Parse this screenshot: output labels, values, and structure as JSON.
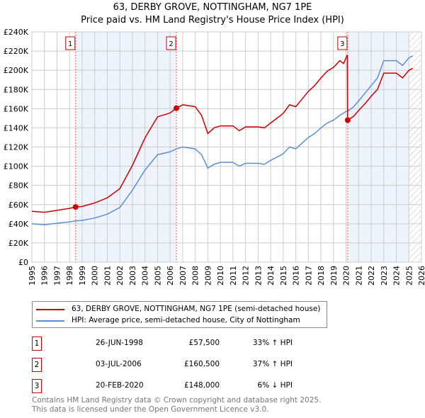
{
  "chart_data": {
    "type": "line",
    "title": "63, DERBY GROVE, NOTTINGHAM, NG7 1PE",
    "subtitle": "Price paid vs. HM Land Registry's House Price Index (HPI)",
    "xlim": [
      1995,
      2026
    ],
    "ylim": [
      0,
      240000
    ],
    "yticks": [
      0,
      20000,
      40000,
      60000,
      80000,
      100000,
      120000,
      140000,
      160000,
      180000,
      200000,
      220000,
      240000
    ],
    "ytick_labels": [
      "£0",
      "£20K",
      "£40K",
      "£60K",
      "£80K",
      "£100K",
      "£120K",
      "£140K",
      "£160K",
      "£180K",
      "£200K",
      "£220K",
      "£240K"
    ],
    "xticks": [
      1995,
      1996,
      1997,
      1998,
      1999,
      2000,
      2001,
      2002,
      2003,
      2004,
      2005,
      2006,
      2007,
      2008,
      2009,
      2010,
      2011,
      2012,
      2013,
      2014,
      2015,
      2016,
      2017,
      2018,
      2019,
      2020,
      2021,
      2022,
      2023,
      2024,
      2025,
      2026
    ],
    "grid": true,
    "data_end": 2025.0,
    "series": [
      {
        "name": "63, DERBY GROVE, NOTTINGHAM, NG7 1PE (semi-detached house)",
        "color": "#cc0000",
        "x": [
          1995,
          1996,
          1997,
          1998,
          1998.48,
          1999,
          2000,
          2001,
          2002,
          2003,
          2004,
          2005,
          2006,
          2006.5,
          2007,
          2008,
          2008.5,
          2009,
          2009.5,
          2010,
          2011,
          2011.5,
          2012,
          2013,
          2013.5,
          2014,
          2015,
          2015.5,
          2016,
          2016.5,
          2017,
          2017.5,
          2018,
          2018.5,
          2019,
          2019.5,
          2019.8,
          2020.1,
          2020.13,
          2020.6,
          2021,
          2021.5,
          2022,
          2022.5,
          2023,
          2023.5,
          2024,
          2024.5,
          2025,
          2025.3
        ],
        "y": [
          53000,
          52000,
          54000,
          56000,
          57500,
          58000,
          61700,
          67000,
          76600,
          100900,
          129500,
          151500,
          155500,
          160500,
          164000,
          162000,
          153000,
          134000,
          140000,
          142000,
          142000,
          137000,
          141000,
          141000,
          140000,
          145000,
          155000,
          164000,
          162000,
          170000,
          178000,
          184000,
          192000,
          199000,
          203000,
          210000,
          207000,
          216000,
          148000,
          152000,
          158000,
          165000,
          173000,
          180000,
          197000,
          197000,
          197000,
          192000,
          200000,
          202000
        ]
      },
      {
        "name": "HPI: Average price, semi-detached house, City of Nottingham",
        "color": "#5b8fd4",
        "x": [
          1995,
          1996,
          1997,
          1998,
          1998.48,
          1999,
          2000,
          2001,
          2002,
          2003,
          2004,
          2005,
          2006,
          2006.5,
          2007,
          2008,
          2008.5,
          2009,
          2009.5,
          2010,
          2011,
          2011.5,
          2012,
          2013,
          2013.5,
          2014,
          2015,
          2015.5,
          2016,
          2016.5,
          2017,
          2017.5,
          2018,
          2018.5,
          2019,
          2019.5,
          2020,
          2020.2,
          2020.6,
          2021,
          2021.5,
          2022,
          2022.5,
          2023,
          2023.5,
          2024,
          2024.5,
          2025,
          2025.3
        ],
        "y": [
          40000,
          39000,
          40500,
          42000,
          43000,
          43500,
          46000,
          50000,
          57000,
          75000,
          96000,
          112000,
          115000,
          118000,
          120000,
          118000,
          112000,
          98000,
          102000,
          104000,
          104000,
          100000,
          103000,
          103000,
          102000,
          106000,
          113000,
          120000,
          118000,
          124000,
          130000,
          134000,
          140000,
          145000,
          148000,
          153000,
          157000,
          158000,
          162000,
          168000,
          176000,
          184000,
          192000,
          210000,
          210000,
          210000,
          205000,
          213000,
          215000
        ]
      }
    ],
    "sales": [
      {
        "label": "1",
        "x": 1998.48,
        "y": 57500,
        "date": "26-JUN-1998",
        "price": "£57,500",
        "hpi": "33% ↑ HPI"
      },
      {
        "label": "2",
        "x": 2006.5,
        "y": 160500,
        "date": "03-JUL-2006",
        "price": "£160,500",
        "hpi": "37% ↑ HPI"
      },
      {
        "label": "3",
        "x": 2020.13,
        "y": 148000,
        "date": "20-FEB-2020",
        "price": "£148,000",
        "hpi": "6% ↓ HPI"
      }
    ]
  },
  "footer": {
    "line1": "Contains HM Land Registry data © Crown copyright and database right 2025.",
    "line2": "This data is licensed under the Open Government Licence v3.0."
  }
}
